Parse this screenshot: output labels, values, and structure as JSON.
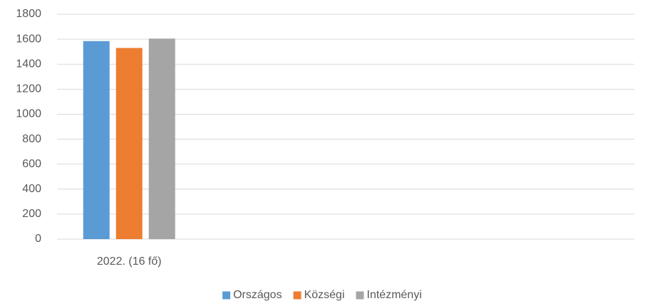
{
  "chart_data": {
    "type": "bar",
    "categories": [
      "2022. (16 fő)",
      null,
      null,
      null
    ],
    "series": [
      {
        "name": "Országos",
        "color": "#5b9bd5",
        "values": [
          1585,
          null,
          null,
          null
        ]
      },
      {
        "name": "Községi",
        "color": "#ed7d31",
        "values": [
          1530,
          null,
          null,
          null
        ]
      },
      {
        "name": "Intézményi",
        "color": "#a5a5a5",
        "values": [
          1605,
          null,
          null,
          null
        ]
      }
    ],
    "ylim": [
      0,
      1800
    ],
    "yticks": [
      0,
      200,
      400,
      600,
      800,
      1000,
      1200,
      1400,
      1600,
      1800
    ],
    "grid": true,
    "legend": "bottom"
  }
}
